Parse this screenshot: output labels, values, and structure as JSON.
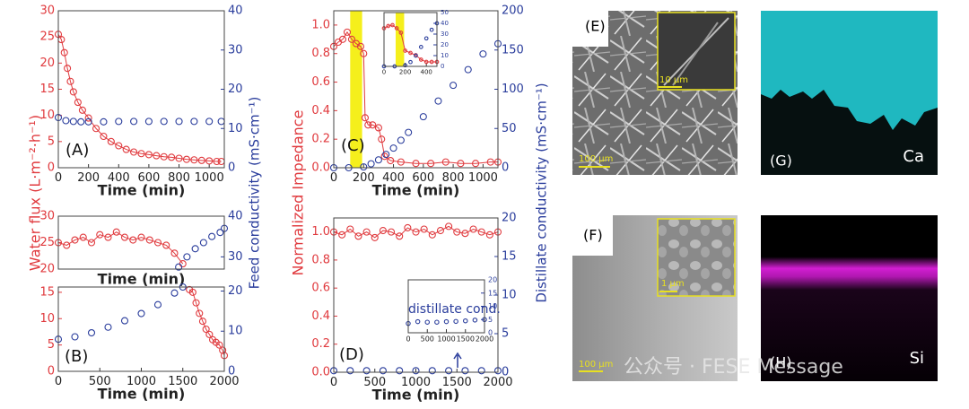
{
  "chart_data": [
    {
      "type": "line",
      "annotation": "(A)",
      "xlabel": "Time (min)",
      "ylabel": "Water flux (L·m⁻²·h⁻¹)",
      "y2label": "Feed conductivity (mS·cm⁻¹)",
      "xlim": [
        0,
        1100
      ],
      "xticks": [
        0,
        200,
        400,
        600,
        800,
        1000
      ],
      "ylim": [
        0,
        30
      ],
      "yticks": [
        0,
        5,
        10,
        15,
        20,
        25,
        30
      ],
      "y2lim": [
        0,
        40
      ],
      "y2ticks": [
        0,
        10,
        20,
        30,
        40
      ],
      "series": [
        {
          "color": "#e03a3e",
          "line": true,
          "axis": "y",
          "x": [
            0,
            20,
            40,
            60,
            80,
            100,
            130,
            160,
            200,
            250,
            300,
            350,
            400,
            450,
            500,
            550,
            600,
            650,
            700,
            750,
            800,
            850,
            900,
            950,
            1000,
            1050,
            1080
          ],
          "values": [
            25.5,
            24.5,
            22,
            19,
            16.5,
            14.5,
            12.5,
            11,
            9.5,
            7.5,
            6,
            5,
            4.2,
            3.5,
            3,
            2.7,
            2.5,
            2.3,
            2.1,
            2,
            1.8,
            1.6,
            1.5,
            1.4,
            1.3,
            1.2,
            1.2
          ]
        },
        {
          "color": "#2a3d9c",
          "line": false,
          "axis": "y2",
          "x": [
            0,
            50,
            100,
            150,
            200,
            300,
            400,
            500,
            600,
            700,
            800,
            900,
            1000,
            1080
          ],
          "values": [
            12.8,
            12,
            11.8,
            11.7,
            11.7,
            11.7,
            11.8,
            11.8,
            11.8,
            11.8,
            11.8,
            11.8,
            11.8,
            11.8
          ]
        }
      ]
    },
    {
      "type": "line",
      "xlabel": "Time (min)",
      "xlim": [
        0,
        2000
      ],
      "ylim": [
        20,
        30
      ],
      "yticks": [
        20,
        25,
        30
      ],
      "y2lim": [
        27,
        40
      ],
      "y2ticks": [
        30,
        40
      ],
      "series": [
        {
          "color": "#e03a3e",
          "line": true,
          "axis": "y",
          "x": [
            0,
            100,
            200,
            300,
            400,
            500,
            600,
            700,
            800,
            900,
            1000,
            1100,
            1200,
            1300,
            1400,
            1500
          ],
          "values": [
            25,
            24.5,
            25.5,
            26,
            25,
            26.5,
            26,
            27,
            26,
            25.5,
            26,
            25.5,
            25,
            24.5,
            23,
            21
          ]
        },
        {
          "color": "#2a3d9c",
          "line": false,
          "axis": "y2",
          "x": [
            1450,
            1550,
            1650,
            1750,
            1850,
            1950,
            2000
          ],
          "values": [
            27.5,
            30,
            32,
            33.5,
            35,
            36,
            37
          ]
        }
      ]
    },
    {
      "type": "line",
      "annotation": "(B)",
      "xlabel": "Time (min)",
      "xlim": [
        0,
        2000
      ],
      "xticks": [
        0,
        500,
        1000,
        1500,
        2000
      ],
      "ylim": [
        0,
        16
      ],
      "yticks": [
        0,
        5,
        10,
        15
      ],
      "y2lim": [
        0,
        21
      ],
      "y2ticks": [
        0,
        10,
        20
      ],
      "series": [
        {
          "color": "#e03a3e",
          "line": true,
          "axis": "y",
          "x": [
            1580,
            1620,
            1660,
            1700,
            1740,
            1780,
            1820,
            1860,
            1900,
            1940,
            1980,
            2000
          ],
          "values": [
            15.5,
            15,
            13,
            11,
            9.5,
            8,
            7,
            6,
            5.5,
            5,
            4,
            3
          ]
        },
        {
          "color": "#2a3d9c",
          "line": false,
          "axis": "y2",
          "x": [
            0,
            200,
            400,
            600,
            800,
            1000,
            1200,
            1400,
            1500
          ],
          "values": [
            8,
            8.6,
            9.6,
            11,
            12.6,
            14.4,
            16.6,
            19.5,
            21
          ]
        }
      ]
    },
    {
      "type": "line",
      "annotation": "(C)",
      "xlabel": "Time (min)",
      "ylabel": "Normalized Impedance",
      "y2label": "Distillate conductivity (mS·cm⁻¹)",
      "highlight": [
        110,
        190
      ],
      "highlight_color": "#f5ef1c",
      "xlim": [
        0,
        1100
      ],
      "xticks": [
        0,
        200,
        400,
        600,
        800,
        1000
      ],
      "ylim": [
        0,
        1.1
      ],
      "yticks": [
        {
          "value": 0,
          "label": "0.0"
        },
        0.2,
        0.4,
        0.6,
        0.8,
        {
          "value": 1,
          "label": "1.0"
        }
      ],
      "y2lim": [
        0,
        200
      ],
      "y2ticks": [
        0,
        50,
        100,
        150,
        200
      ],
      "series": [
        {
          "color": "#e03a3e",
          "line": true,
          "axis": "y",
          "x": [
            0,
            30,
            60,
            90,
            120,
            150,
            180,
            200,
            210,
            230,
            260,
            300,
            320,
            340,
            380,
            450,
            550,
            650,
            750,
            850,
            950,
            1050,
            1100
          ],
          "values": [
            0.85,
            0.88,
            0.9,
            0.95,
            0.9,
            0.87,
            0.85,
            0.8,
            0.35,
            0.3,
            0.3,
            0.28,
            0.2,
            0.08,
            0.05,
            0.04,
            0.03,
            0.03,
            0.04,
            0.03,
            0.03,
            0.04,
            0.04
          ]
        },
        {
          "color": "#2a3d9c",
          "line": false,
          "axis": "y2",
          "x": [
            0,
            100,
            200,
            250,
            300,
            350,
            400,
            450,
            500,
            600,
            700,
            800,
            900,
            1000,
            1100
          ],
          "values": [
            0,
            0,
            1,
            5,
            10,
            17,
            25,
            35,
            45,
            65,
            85,
            105,
            125,
            145,
            158
          ]
        }
      ]
    },
    {
      "type": "line",
      "highlight": [
        110,
        190
      ],
      "highlight_color": "#f5ef1c",
      "xlim": [
        0,
        500
      ],
      "xticks": [
        0,
        200,
        400
      ],
      "ylim": [
        0,
        1.2
      ],
      "y2lim": [
        0,
        50
      ],
      "y2ticks": [
        0,
        10,
        20,
        30,
        40,
        50
      ],
      "series": [
        {
          "color": "#e03a3e",
          "line": true,
          "axis": "y",
          "x": [
            0,
            40,
            80,
            120,
            160,
            200,
            250,
            300,
            350,
            400,
            450,
            500
          ],
          "values": [
            0.85,
            0.9,
            0.92,
            0.85,
            0.75,
            0.35,
            0.3,
            0.25,
            0.15,
            0.1,
            0.1,
            0.1
          ]
        },
        {
          "color": "#2a3d9c",
          "line": false,
          "axis": "y2",
          "x": [
            0,
            100,
            200,
            250,
            300,
            350,
            400,
            450,
            500
          ],
          "values": [
            0,
            0,
            1,
            4,
            10,
            18,
            26,
            34,
            40
          ]
        }
      ]
    },
    {
      "type": "line",
      "annotation": "(D)",
      "xlabel": "Time (min)",
      "xlim": [
        0,
        2000
      ],
      "xticks": [
        0,
        500,
        1000,
        1500,
        2000
      ],
      "ylim": [
        0,
        1.1
      ],
      "yticks": [
        {
          "value": 0,
          "label": "0.0"
        },
        0.2,
        0.4,
        0.6,
        0.8,
        {
          "value": 1,
          "label": "1.0"
        }
      ],
      "y2lim": [
        0,
        20
      ],
      "y2ticks": [
        0,
        5,
        10,
        15,
        20
      ],
      "series": [
        {
          "color": "#e03a3e",
          "line": true,
          "axis": "y",
          "x": [
            0,
            100,
            200,
            300,
            400,
            500,
            600,
            700,
            800,
            900,
            1000,
            1100,
            1200,
            1300,
            1400,
            1500,
            1600,
            1700,
            1800,
            1900,
            2000
          ],
          "values": [
            1.0,
            0.98,
            1.02,
            0.97,
            1.0,
            0.96,
            1.01,
            1.0,
            0.97,
            1.03,
            1.0,
            1.02,
            0.98,
            1.01,
            1.04,
            1.0,
            0.99,
            1.02,
            1.0,
            0.98,
            1.0
          ]
        },
        {
          "color": "#2a3d9c",
          "line": false,
          "axis": "y2",
          "x": [
            0,
            200,
            400,
            600,
            800,
            1000,
            1200,
            1400,
            1600,
            1800,
            2000
          ],
          "values": [
            0.2,
            0.2,
            0.2,
            0.2,
            0.2,
            0.2,
            0.2,
            0.2,
            0.2,
            0.2,
            0.2
          ]
        }
      ]
    },
    {
      "type": "line",
      "annotation": "distillate cond.",
      "xlim": [
        0,
        2000
      ],
      "xticks": [
        0,
        500,
        1000,
        1500,
        2000
      ],
      "y2lim": [
        0,
        20
      ],
      "y2ticks": [
        0,
        5,
        10,
        15,
        20
      ],
      "series": [
        {
          "color": "#2a3d9c",
          "line": false,
          "axis": "y2",
          "x": [
            0,
            250,
            500,
            750,
            1000,
            1250,
            1500,
            1750,
            2000
          ],
          "values": [
            3.5,
            4.2,
            4,
            4,
            4.2,
            4.3,
            4.5,
            4.8,
            5
          ]
        }
      ]
    }
  ],
  "images": [
    {
      "label": "(E)",
      "inset_scale": "10 μm",
      "scale": "100 μm"
    },
    {
      "label": "(G)",
      "element": "Ca"
    },
    {
      "label": "(F)",
      "inset_scale": "1 μm",
      "scale": "100 μm"
    },
    {
      "label": "(H)",
      "element": "Si"
    }
  ],
  "watermark": "公众号 · FESE Message"
}
